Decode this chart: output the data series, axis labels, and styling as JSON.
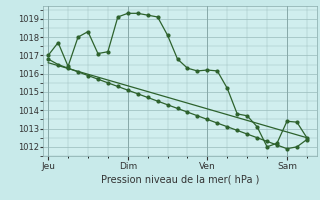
{
  "background_color": "#c8eaea",
  "plot_bg_color": "#d0eeee",
  "grid_color": "#99bbbb",
  "line_color": "#2d622d",
  "marker_color": "#2d622d",
  "title": "Pression niveau de la mer( hPa )",
  "xlabel_day_labels": [
    "Jeu",
    "Dim",
    "Ven",
    "Sam"
  ],
  "xlabel_day_positions": [
    0,
    8,
    16,
    24
  ],
  "ylim": [
    1011.5,
    1019.7
  ],
  "yticks": [
    1012,
    1013,
    1014,
    1015,
    1016,
    1017,
    1018,
    1019
  ],
  "series1_x": [
    0,
    1,
    2,
    3,
    4,
    5,
    6,
    7,
    8,
    9,
    10,
    11,
    12,
    13,
    14,
    15,
    16,
    17,
    18,
    19,
    20,
    21,
    22,
    23,
    24,
    25,
    26
  ],
  "series1_y": [
    1017.0,
    1017.7,
    1016.4,
    1018.0,
    1018.3,
    1017.1,
    1017.2,
    1019.1,
    1019.3,
    1019.3,
    1019.2,
    1019.1,
    1018.1,
    1016.8,
    1016.3,
    1016.15,
    1016.2,
    1016.15,
    1015.2,
    1013.8,
    1013.7,
    1013.1,
    1012.0,
    1012.2,
    1013.4,
    1013.35,
    1012.5
  ],
  "series2_x": [
    0,
    1,
    2,
    3,
    4,
    5,
    6,
    7,
    8,
    9,
    10,
    11,
    12,
    13,
    14,
    15,
    16,
    17,
    18,
    19,
    20,
    21,
    22,
    23,
    24,
    25,
    26
  ],
  "series2_y": [
    1016.8,
    1016.5,
    1016.3,
    1016.1,
    1015.9,
    1015.7,
    1015.5,
    1015.3,
    1015.1,
    1014.9,
    1014.7,
    1014.5,
    1014.3,
    1014.1,
    1013.9,
    1013.7,
    1013.5,
    1013.3,
    1013.1,
    1012.9,
    1012.7,
    1012.5,
    1012.3,
    1012.1,
    1011.9,
    1012.0,
    1012.4
  ],
  "series3_x": [
    0,
    26
  ],
  "series3_y": [
    1016.6,
    1012.5
  ],
  "xlim": [
    -0.5,
    27
  ],
  "figsize": [
    3.2,
    2.0
  ],
  "dpi": 100
}
